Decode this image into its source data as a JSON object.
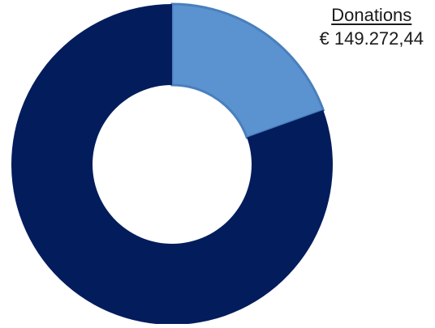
{
  "chart_data": {
    "type": "pie",
    "variant": "donut",
    "labels": [
      "Donations",
      ""
    ],
    "values": [
      0.195,
      0.805
    ],
    "colors": [
      "#5b93d1",
      "#021c5c"
    ],
    "start_angle_deg": 0,
    "direction": "clockwise",
    "annotations": [
      {
        "label": "Donations",
        "value_text": "€ 149.272,44"
      }
    ]
  }
}
